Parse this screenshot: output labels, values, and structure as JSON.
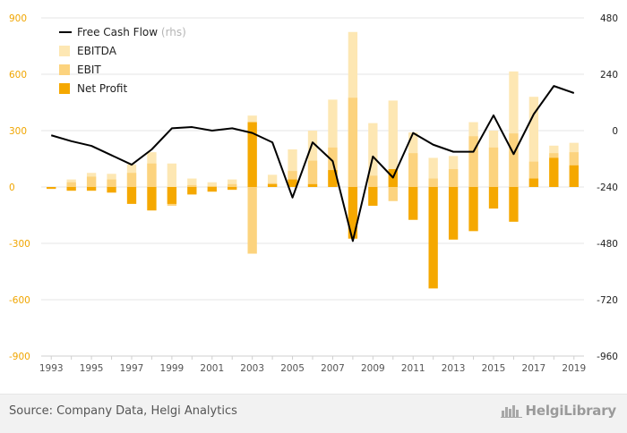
{
  "chart_data": {
    "type": "bar",
    "categories": [
      "1993",
      "1994",
      "1995",
      "1996",
      "1997",
      "1998",
      "1999",
      "2000",
      "2001",
      "2002",
      "2003",
      "2004",
      "2005",
      "2006",
      "2007",
      "2008",
      "2009",
      "2010",
      "2011",
      "2012",
      "2013",
      "2014",
      "2015",
      "2016",
      "2017",
      "2018",
      "2019"
    ],
    "x_tick_labels": [
      "1993",
      "1995",
      "1997",
      "1999",
      "2001",
      "2003",
      "2005",
      "2007",
      "2009",
      "2011",
      "2013",
      "2015",
      "2017",
      "2019"
    ],
    "y_left": {
      "ylim": [
        -900,
        900
      ],
      "ticks": [
        -900,
        -600,
        -300,
        0,
        300,
        600,
        900
      ]
    },
    "y_right": {
      "ylim": [
        -960,
        480
      ],
      "ticks": [
        -960,
        -720,
        -480,
        -240,
        0,
        240,
        480
      ]
    },
    "series": [
      {
        "name": "EBITDA",
        "axis": "left",
        "color": "#fde7b3",
        "values": [
          -5,
          40,
          75,
          70,
          120,
          185,
          125,
          45,
          25,
          40,
          380,
          65,
          200,
          300,
          465,
          825,
          340,
          460,
          290,
          155,
          165,
          345,
          300,
          615,
          480,
          220,
          235
        ]
      },
      {
        "name": "EBIT",
        "axis": "left",
        "color": "#fcd37e",
        "values": [
          -10,
          25,
          55,
          40,
          75,
          125,
          -100,
          10,
          5,
          15,
          -355,
          20,
          85,
          140,
          210,
          475,
          60,
          -75,
          180,
          45,
          95,
          270,
          210,
          285,
          135,
          180,
          185
        ]
      },
      {
        "name": "Net Profit",
        "axis": "left",
        "color": "#f5a800",
        "values": [
          -10,
          -20,
          -20,
          -30,
          -90,
          -125,
          -90,
          -40,
          -25,
          -15,
          345,
          15,
          40,
          15,
          90,
          -275,
          -100,
          95,
          -175,
          -540,
          -280,
          -235,
          -115,
          -185,
          45,
          155,
          115
        ]
      },
      {
        "name": "Free Cash Flow",
        "name_suffix": "(rhs)",
        "axis": "right",
        "type": "line",
        "color": "#000000",
        "values": [
          -20,
          -45,
          -65,
          -105,
          -145,
          -80,
          10,
          15,
          0,
          10,
          -10,
          -50,
          -285,
          -50,
          -130,
          -470,
          -110,
          -200,
          -10,
          -60,
          -90,
          -90,
          65,
          -100,
          70,
          190,
          160
        ]
      }
    ],
    "legend": {
      "placement": "top-left"
    },
    "grid": {
      "horizontal": true,
      "vertical": false
    }
  },
  "footer": {
    "source": "Source: Company Data, Helgi Analytics",
    "brand": "HelgiLibrary",
    "brand_icon": "city-skyline-icon"
  },
  "colors": {
    "axis_left": "#f0a500",
    "axis_right": "#222222",
    "grid": "#e6e6e6"
  }
}
